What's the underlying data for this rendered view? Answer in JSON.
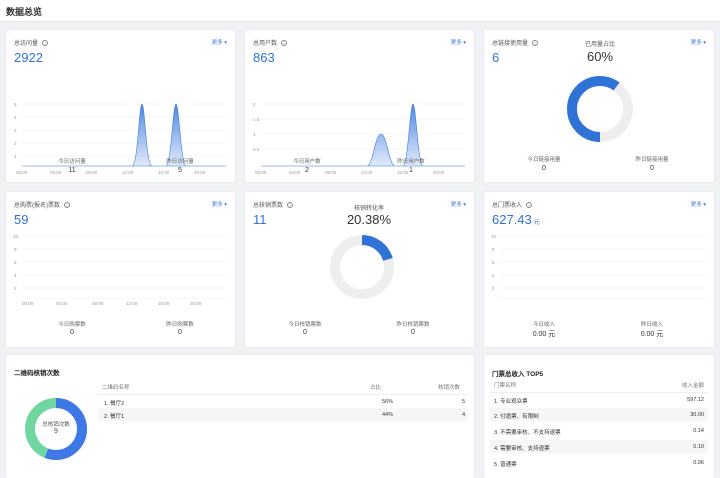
{
  "page": {
    "title": "数据总览"
  },
  "common": {
    "more": "更多 ▾",
    "info": "i"
  },
  "card_visits": {
    "title": "总访问量",
    "value": "2922",
    "x_ticks": [
      "00:00",
      "04:00",
      "08:00",
      "12:00",
      "16:00",
      "20:00"
    ],
    "y_ticks": [
      "5",
      "4",
      "3",
      "2",
      "1"
    ],
    "today_label": "今日访问量",
    "today_value": "11",
    "yesterday_label": "昨日访问量",
    "yesterday_value": "5"
  },
  "card_users": {
    "title": "总用户数",
    "value": "863",
    "x_ticks": [
      "00:00",
      "04:00",
      "08:00",
      "12:00",
      "16:00",
      "20:00"
    ],
    "y_ticks": [
      "2",
      "1.5",
      "1",
      "0.5"
    ],
    "today_label": "今日用户数",
    "today_value": "2",
    "yesterday_label": "昨日用户数",
    "yesterday_value": "1"
  },
  "card_coupon": {
    "title": "总链接使用量",
    "value": "6",
    "ratio_label": "已用量占比",
    "ratio_value": "60%",
    "ratio_fraction": 0.6,
    "today_label": "今日链接用量",
    "today_value": "0",
    "yesterday_label": "昨日链接用量",
    "yesterday_value": "0"
  },
  "card_scan": {
    "title": "总购票(报名)票数",
    "value": "59",
    "x_ticks": [
      "00:00",
      "04:00",
      "08:00",
      "12:00",
      "16:00",
      "20:00"
    ],
    "y_ticks": [
      "10",
      "8",
      "6",
      "4",
      "2"
    ],
    "today_label": "今日购票数",
    "today_value": "0",
    "yesterday_label": "昨日购票数",
    "yesterday_value": "0"
  },
  "card_verify": {
    "title": "总核销票数",
    "value": "11",
    "ratio_label": "核销转化率",
    "ratio_value": "20.38%",
    "ratio_fraction": 0.2038,
    "today_label": "今日核销票数",
    "today_value": "0",
    "yesterday_label": "昨日核销票数",
    "yesterday_value": "0"
  },
  "card_revenue": {
    "title": "总门票收入",
    "value": "627.43",
    "unit": "元",
    "y_ticks": [
      "10",
      "8",
      "6",
      "4",
      "2"
    ],
    "today_label": "今日收入",
    "today_value": "0.00 元",
    "yesterday_label": "昨日收入",
    "yesterday_value": "0.00 元"
  },
  "qr_section": {
    "title": "二维码核销次数",
    "donut_label": "总核销次数",
    "donut_value": "9",
    "headers": [
      "二维码名称",
      "占比",
      "核销次数"
    ],
    "rows": [
      {
        "name": "1. 餐厅2",
        "pct": "56%",
        "count": "5",
        "fraction": 0.56,
        "color": "#3e78e6"
      },
      {
        "name": "2. 餐厅1",
        "pct": "44%",
        "count": "4",
        "fraction": 0.44,
        "color": "#6fd6a0"
      }
    ]
  },
  "top5_section": {
    "title": "门票总收入 TOP5",
    "headers": [
      "门票名称",
      "收入金额"
    ],
    "rows": [
      {
        "name": "1. 专业观众票",
        "amount": "597.12"
      },
      {
        "name": "2. 付邀票、有限制",
        "amount": "30.00"
      },
      {
        "name": "3. 不需要审核、不支持退票",
        "amount": "0.14"
      },
      {
        "name": "4. 需要审核、支持退票",
        "amount": "0.10"
      },
      {
        "name": "5. 普通票",
        "amount": "0.06"
      }
    ]
  },
  "colors": {
    "accent": "#2f73d6",
    "ring_bg": "#eeeeee",
    "ring_fg": "#2f73d6",
    "area": "#3d7bdf"
  }
}
